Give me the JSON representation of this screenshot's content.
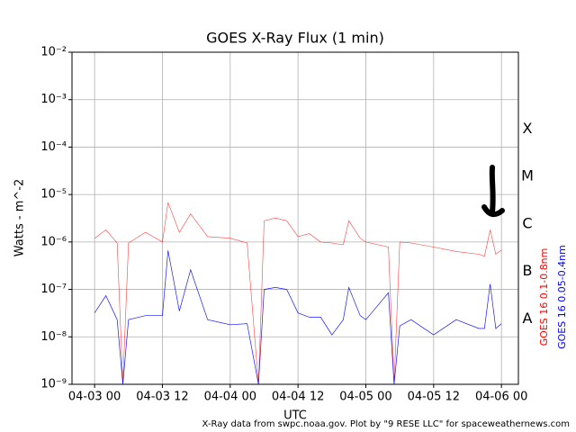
{
  "chart_data": {
    "type": "line",
    "title": "GOES X-Ray Flux (1 min)",
    "x_label": "UTC",
    "y_label": "Watts - m^-2",
    "footer": "X-Ray data from swpc.noaa.gov. Plot by \"9 RESE LLC\" for spaceweathernews.com",
    "x": [
      "04-03 00",
      "04-03 02",
      "04-03 04",
      "04-03 05",
      "04-03 06",
      "04-03 09",
      "04-03 12",
      "04-03 13",
      "04-03 15",
      "04-03 17",
      "04-03 20",
      "04-04 00",
      "04-04 03",
      "04-04 05",
      "04-04 06",
      "04-04 08",
      "04-04 10",
      "04-04 12",
      "04-04 14",
      "04-04 16",
      "04-04 18",
      "04-04 20",
      "04-04 21",
      "04-04 23",
      "04-05 00",
      "04-05 04",
      "04-05 05",
      "04-05 06",
      "04-05 08",
      "04-05 12",
      "04-05 16",
      "04-05 20",
      "04-05 21",
      "04-05 22",
      "04-05 23",
      "04-06 00"
    ],
    "series": [
      {
        "name": "GOES 16 0.1-0.8nm",
        "color": "#ff0000",
        "values": [
          1.2e-06,
          1.8e-06,
          9.5e-07,
          1e-09,
          9.5e-07,
          1.6e-06,
          1e-06,
          6.8e-06,
          1.6e-06,
          3.9e-06,
          1.3e-06,
          1.2e-06,
          9.5e-07,
          1e-09,
          2.8e-06,
          3.2e-06,
          2.8e-06,
          1.3e-06,
          1.5e-06,
          1e-06,
          9.5e-07,
          8.7e-07,
          2.8e-06,
          1.2e-06,
          1e-06,
          7.8e-07,
          1e-09,
          1e-06,
          9.5e-07,
          7.8e-07,
          6.3e-07,
          5.5e-07,
          5e-07,
          1.8e-06,
          5.5e-07,
          6.8e-07
        ]
      },
      {
        "name": "GOES 16 0.05-0.4nm",
        "color": "#0000ff",
        "values": [
          3.2e-08,
          7.4e-08,
          2.3e-08,
          1e-09,
          2.3e-08,
          2.8e-08,
          2.8e-08,
          6.6e-07,
          3.5e-08,
          2.6e-07,
          2.3e-08,
          1.8e-08,
          1.9e-08,
          1e-09,
          1e-07,
          1.1e-07,
          1e-07,
          3.2e-08,
          2.6e-08,
          2.6e-08,
          1.1e-08,
          2.3e-08,
          1.1e-07,
          2.8e-08,
          2.3e-08,
          8.5e-08,
          1e-09,
          1.7e-08,
          2.3e-08,
          1.1e-08,
          2.3e-08,
          1.5e-08,
          1.5e-08,
          1.3e-07,
          1.5e-08,
          1.9e-08
        ]
      }
    ],
    "xlim": [
      "04-02 20",
      "04-06 03"
    ],
    "xticks": [
      "04-03 00",
      "04-03 12",
      "04-04 00",
      "04-04 12",
      "04-05 00",
      "04-05 12",
      "04-06 00"
    ],
    "ylim": [
      1e-09,
      0.01
    ],
    "yscale": "log",
    "yticks": [
      {
        "value": 1e-09,
        "label": "10⁻⁹"
      },
      {
        "value": 1e-08,
        "label": "10⁻⁸"
      },
      {
        "value": 1e-07,
        "label": "10⁻⁷"
      },
      {
        "value": 1e-06,
        "label": "10⁻⁶"
      },
      {
        "value": 1e-05,
        "label": "10⁻⁵"
      },
      {
        "value": 0.0001,
        "label": "10⁻⁴"
      },
      {
        "value": 0.001,
        "label": "10⁻³"
      },
      {
        "value": 0.01,
        "label": "10⁻²"
      }
    ],
    "grid": true,
    "flare_classes": [
      {
        "label": "A",
        "value": 1e-08
      },
      {
        "label": "B",
        "value": 1e-07
      },
      {
        "label": "C",
        "value": 1e-06
      },
      {
        "label": "M",
        "value": 1e-05
      },
      {
        "label": "X",
        "value": 0.0001
      }
    ]
  }
}
